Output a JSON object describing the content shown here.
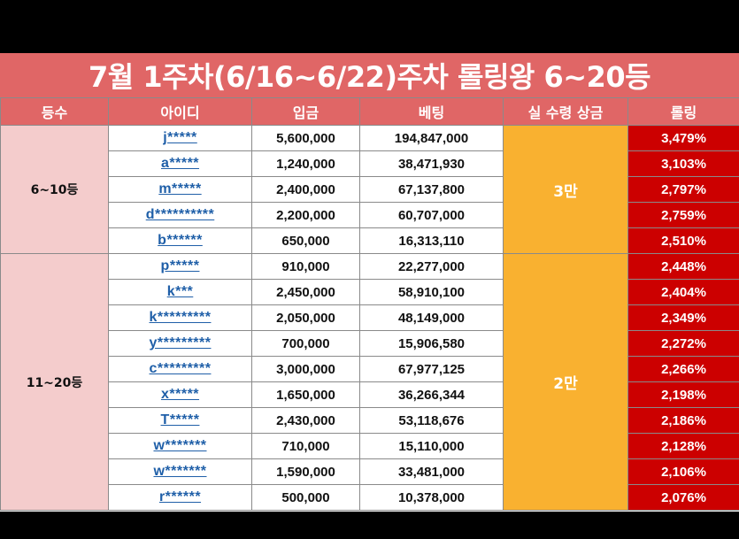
{
  "title": "7월 1주차(6/16~6/22)주차 롤링왕 6~20등",
  "headers": [
    "등수",
    "아이디",
    "입금",
    "베팅",
    "실 수령 상금",
    "롤링"
  ],
  "groups": [
    {
      "rank": "6~10등",
      "prize": "3만",
      "rows": [
        {
          "id": "j*****",
          "deposit": "5,600,000",
          "bet": "194,847,000",
          "rolling": "3,479%"
        },
        {
          "id": "a*****",
          "deposit": "1,240,000",
          "bet": "38,471,930",
          "rolling": "3,103%"
        },
        {
          "id": "m*****",
          "deposit": "2,400,000",
          "bet": "67,137,800",
          "rolling": "2,797%"
        },
        {
          "id": "d**********",
          "deposit": "2,200,000",
          "bet": "60,707,000",
          "rolling": "2,759%"
        },
        {
          "id": "b******",
          "deposit": "650,000",
          "bet": "16,313,110",
          "rolling": "2,510%"
        }
      ]
    },
    {
      "rank": "11~20등",
      "prize": "2만",
      "rows": [
        {
          "id": "p*****",
          "deposit": "910,000",
          "bet": "22,277,000",
          "rolling": "2,448%"
        },
        {
          "id": "k***",
          "deposit": "2,450,000",
          "bet": "58,910,100",
          "rolling": "2,404%"
        },
        {
          "id": "k*********",
          "deposit": "2,050,000",
          "bet": "48,149,000",
          "rolling": "2,349%"
        },
        {
          "id": "y*********",
          "deposit": "700,000",
          "bet": "15,906,580",
          "rolling": "2,272%"
        },
        {
          "id": "c*********",
          "deposit": "3,000,000",
          "bet": "67,977,125",
          "rolling": "2,266%"
        },
        {
          "id": "x*****",
          "deposit": "1,650,000",
          "bet": "36,266,344",
          "rolling": "2,198%"
        },
        {
          "id": "T*****",
          "deposit": "2,430,000",
          "bet": "53,118,676",
          "rolling": "2,186%"
        },
        {
          "id": "w*******",
          "deposit": "710,000",
          "bet": "15,110,000",
          "rolling": "2,128%"
        },
        {
          "id": "w*******",
          "deposit": "1,590,000",
          "bet": "33,481,000",
          "rolling": "2,106%"
        },
        {
          "id": "r******",
          "deposit": "500,000",
          "bet": "10,378,000",
          "rolling": "2,076%"
        }
      ]
    }
  ],
  "colors": {
    "header": "#e06666",
    "group_cell": "#f4cccc",
    "prize_cell": "#f9b130",
    "rolling_cell": "#cc0000",
    "id_link": "#1f5fa8"
  }
}
